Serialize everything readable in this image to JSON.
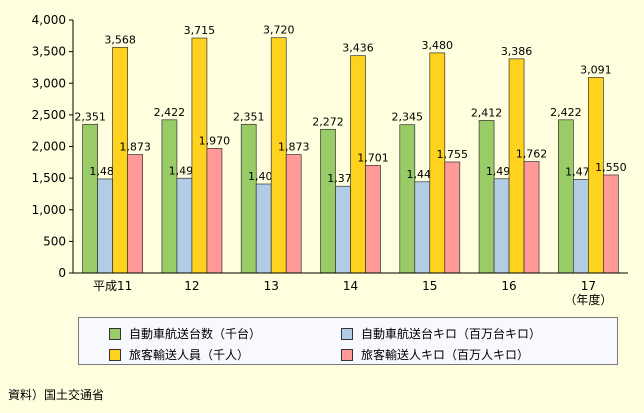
{
  "chart_data": {
    "type": "bar",
    "categories": [
      "平成11",
      "12",
      "13",
      "14",
      "15",
      "16",
      "17"
    ],
    "x_unit_note": "（年度）",
    "ylim": [
      0,
      4000
    ],
    "yticks": [
      "0",
      "500",
      "1,000",
      "1,500",
      "2,000",
      "2,500",
      "3,000",
      "3,500",
      "4,000"
    ],
    "ytick_values": [
      0,
      500,
      1000,
      1500,
      2000,
      2500,
      3000,
      3500,
      4000
    ],
    "grid": false,
    "legend_position": "bottom",
    "series": [
      {
        "name": "自動車航送台数（千台）",
        "color": "#99cc66",
        "values": [
          2351,
          2422,
          2351,
          2272,
          2345,
          2412,
          2422
        ],
        "labels": [
          "2,351",
          "2,422",
          "2,351",
          "2,272",
          "2,345",
          "2,412",
          "2,422"
        ]
      },
      {
        "name": "自動車航送台キロ（百万台キロ）",
        "color": "#b3cce6",
        "values": [
          1487,
          1498,
          1407,
          1372,
          1442,
          1490,
          1479
        ],
        "labels": [
          "1,487",
          "1,498",
          "1,407",
          "1,372",
          "1,442",
          "1,490",
          "1,479"
        ]
      },
      {
        "name": "旅客輸送人員（千人）",
        "color": "#ffd21e",
        "values": [
          3568,
          3715,
          3720,
          3436,
          3480,
          3386,
          3091
        ],
        "labels": [
          "3,568",
          "3,715",
          "3,720",
          "3,436",
          "3,480",
          "3,386",
          "3,091"
        ]
      },
      {
        "name": "旅客輸送人キロ（百万人キロ）",
        "color": "#ff9a99",
        "values": [
          1873,
          1970,
          1873,
          1701,
          1755,
          1762,
          1550
        ],
        "labels": [
          "1,873",
          "1,970",
          "1,873",
          "1,701",
          "1,755",
          "1,762",
          "1,550"
        ]
      }
    ]
  },
  "source_note": "資料）国土交通省"
}
